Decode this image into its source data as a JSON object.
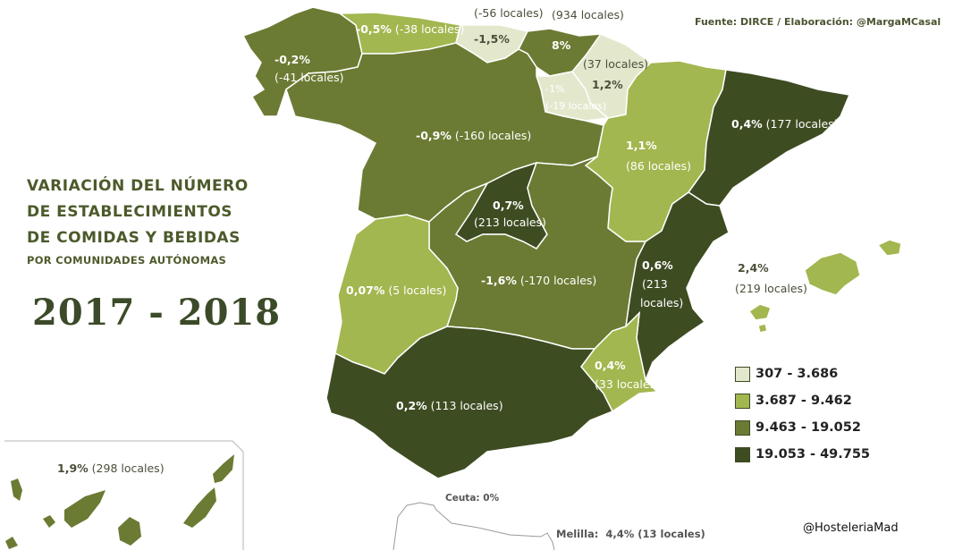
{
  "title": {
    "line1": "VARIACIÓN DEL NÚMERO",
    "line2": "DE ESTABLECIMIENTOS",
    "line3": "DE COMIDAS Y BEBIDAS",
    "line4": "POR COMUNIDADES AUTÓNOMAS",
    "years": "2017 - 2018"
  },
  "source": "Fuente: DIRCE / Elaboración: @MargaMCasal",
  "handle": "@HosteleriaMad",
  "colors": {
    "tier1": "#e3e8cd",
    "tier2": "#a2b74f",
    "tier3": "#6b7b33",
    "tier4": "#3e4c22",
    "title": "#4c5a2b"
  },
  "legend": [
    {
      "range": "307 - 3.686",
      "tier": "tier1"
    },
    {
      "range": "3.687 - 9.462",
      "tier": "tier2"
    },
    {
      "range": "9.463 - 19.052",
      "tier": "tier3"
    },
    {
      "range": "19.053 - 49.755",
      "tier": "tier4"
    }
  ],
  "regions": {
    "galicia": {
      "pct": "-0,2%",
      "locales": "(-41 locales)",
      "tier": "tier3"
    },
    "asturias": {
      "pct": "-0,5%",
      "locales": "(-38 locales)",
      "tier": "tier2"
    },
    "cantabria": {
      "pct": "-1,5%",
      "locales": "(-56 locales)",
      "tier": "tier1"
    },
    "pais_vasco": {
      "pct": "8%",
      "locales": "(934 locales)",
      "tier": "tier3"
    },
    "navarra": {
      "pct": "1,2%",
      "locales": "(37 locales)",
      "tier": "tier1"
    },
    "la_rioja": {
      "pct": "-1%",
      "locales": "(-19 locales)",
      "tier": "tier1"
    },
    "castilla_leon": {
      "pct": "-0,9%",
      "locales": "(-160 locales)",
      "tier": "tier3"
    },
    "aragon": {
      "pct": "1,1%",
      "locales": "(86 locales)",
      "tier": "tier2"
    },
    "cataluna": {
      "pct": "0,4%",
      "locales": "(177 locales)",
      "tier": "tier4"
    },
    "madrid": {
      "pct": "0,7%",
      "locales": "(213 locales)",
      "tier": "tier4"
    },
    "castilla_la_mancha": {
      "pct": "-1,6%",
      "locales": "(-170 locales)",
      "tier": "tier3"
    },
    "extremadura": {
      "pct": "0,07%",
      "locales": "(5 locales)",
      "tier": "tier2"
    },
    "valencia": {
      "pct": "0,6%",
      "locales_1": "(213",
      "locales_2": "locales)",
      "tier": "tier4"
    },
    "murcia": {
      "pct": "0,4%",
      "locales": "(33 locales)",
      "tier": "tier2"
    },
    "andalucia": {
      "pct": "0,2%",
      "locales": "(113 locales)",
      "tier": "tier4"
    },
    "baleares": {
      "pct": "2,4%",
      "locales": "(219 locales)",
      "tier": "tier2"
    },
    "canarias": {
      "pct": "1,9%",
      "locales": "(298 locales)",
      "tier": "tier3"
    }
  },
  "cities": {
    "ceuta": {
      "name": "Ceuta:",
      "value": "0%"
    },
    "melilla": {
      "name": "Melilla:",
      "value": "4,4% (13 locales)"
    }
  }
}
